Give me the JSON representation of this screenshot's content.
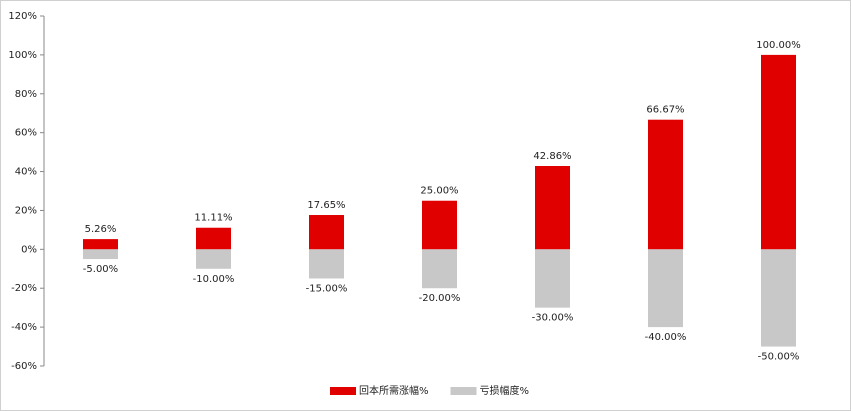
{
  "chart_data": {
    "type": "bar",
    "categories": [
      null,
      null,
      null,
      null,
      null,
      null,
      null
    ],
    "series": [
      {
        "name": "回本所需涨幅%",
        "color": "#e00000",
        "values": [
          5.26,
          11.11,
          17.65,
          25.0,
          42.86,
          66.67,
          100.0
        ],
        "value_labels": [
          "5.26%",
          "11.11%",
          "17.65%",
          "25.00%",
          "42.86%",
          "66.67%",
          "100.00%"
        ]
      },
      {
        "name": "亏损幅度%",
        "color": "#c8c8c8",
        "values": [
          -5.0,
          -10.0,
          -15.0,
          -20.0,
          -30.0,
          -40.0,
          -50.0
        ],
        "value_labels": [
          "-5.00%",
          "-10.00%",
          "-15.00%",
          "-20.00%",
          "-30.00%",
          "-40.00%",
          "-50.00%"
        ]
      }
    ],
    "ylim": [
      -60,
      120
    ],
    "yticks": [
      {
        "value": -60,
        "label": "-60%"
      },
      {
        "value": -40,
        "label": "-40%"
      },
      {
        "value": -20,
        "label": "-20%"
      },
      {
        "value": 0,
        "label": "0%"
      },
      {
        "value": 20,
        "label": "20%"
      },
      {
        "value": 40,
        "label": "40%"
      },
      {
        "value": 60,
        "label": "60%"
      },
      {
        "value": 80,
        "label": "80%"
      },
      {
        "value": 100,
        "label": "100%"
      },
      {
        "value": 120,
        "label": "120%"
      }
    ],
    "legend": "bottom"
  }
}
